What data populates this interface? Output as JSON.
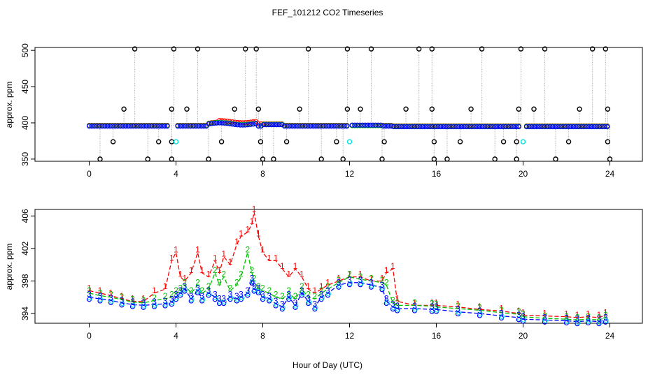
{
  "title": "FEF_101212  CO2 Timeseries",
  "xlabel": "Hour of Day (UTC)",
  "colors": {
    "raw_black": "#000000",
    "series1": "#ff0000",
    "series2": "#00c000",
    "series3": "#0000ff",
    "cyan": "#00e5e5",
    "connector": "#a0a0a0"
  },
  "chart_data": [
    {
      "type": "scatter",
      "ylabel": "approx. ppm",
      "xlim": [
        -2.5,
        25.5
      ],
      "ylim": [
        347,
        504
      ],
      "xticks": [
        0,
        4,
        8,
        12,
        16,
        20,
        24
      ],
      "yticks": [
        350,
        400,
        450,
        500
      ],
      "series": [
        {
          "name": "1",
          "values": "approx. 396 baseline; rises to ~403 near 7h"
        },
        {
          "name": "2",
          "values": "approx. 396 baseline"
        },
        {
          "name": "3",
          "values": "approx. 395 baseline"
        }
      ],
      "spikes_500": [
        2.1,
        3.9,
        5.0,
        7.2,
        7.7,
        10.1,
        11.9,
        13.0,
        15.2,
        15.8,
        18.1,
        19.9,
        21.0,
        23.2,
        23.8
      ],
      "points_420": [
        1.6,
        3.8,
        4.5,
        6.7,
        7.8,
        9.7,
        11.9,
        12.5,
        14.6,
        15.8,
        17.6,
        19.8,
        20.5,
        22.6,
        23.9
      ],
      "points_375": [
        1.1,
        3.2,
        3.8,
        6.1,
        7.9,
        9.1,
        11.4,
        13.6,
        15.9,
        17.1,
        19.1,
        19.7,
        22.1,
        23.9
      ],
      "points_350": [
        0.5,
        2.7,
        3.8,
        5.5,
        8.0,
        8.5,
        10.7,
        11.7,
        13.5,
        15.9,
        16.5,
        18.7,
        19.7,
        21.5,
        24.0
      ],
      "cyan_points": [
        4.0,
        12.0,
        20.0
      ]
    },
    {
      "type": "line",
      "ylabel": "approx. ppm",
      "xlim": [
        -2.5,
        25.5
      ],
      "ylim": [
        392.8,
        406.8
      ],
      "xticks": [
        0,
        4,
        8,
        12,
        16,
        20,
        24
      ],
      "yticks": [
        394,
        398,
        402,
        406
      ],
      "x": [
        0.0,
        0.5,
        1.0,
        1.5,
        2.0,
        2.5,
        3.0,
        3.5,
        3.8,
        4.0,
        4.2,
        4.4,
        4.7,
        5.0,
        5.2,
        5.5,
        5.8,
        6.0,
        6.2,
        6.5,
        6.8,
        7.0,
        7.3,
        7.5,
        7.6,
        7.8,
        8.0,
        8.3,
        8.6,
        8.9,
        9.2,
        9.5,
        9.8,
        10.1,
        10.4,
        10.7,
        11.0,
        11.5,
        12.0,
        12.5,
        13.0,
        13.5,
        13.7,
        14.0,
        14.2,
        15.0,
        15.8,
        16.0,
        17.0,
        18.0,
        19.0,
        19.8,
        20.0,
        21.0,
        22.0,
        22.5,
        23.0,
        23.5,
        23.8
      ],
      "series": [
        {
          "name": "1",
          "values": [
            396.8,
            396.5,
            396.2,
            395.8,
            395.5,
            395.5,
            396.5,
            397.0,
            400.5,
            401.5,
            398.5,
            398.0,
            399.0,
            401.5,
            399.0,
            398.5,
            400.5,
            399.0,
            401.0,
            400.0,
            402.5,
            403.5,
            404.0,
            405.0,
            406.5,
            403.5,
            401.5,
            400.5,
            400.5,
            399.5,
            398.5,
            399.5,
            398.5,
            397.0,
            396.5,
            397.0,
            397.5,
            398.0,
            398.5,
            398.5,
            398.0,
            398.0,
            399.0,
            399.5,
            395.5,
            395.0,
            395.0,
            395.0,
            394.8,
            394.5,
            394.3,
            394.0,
            393.8,
            393.7,
            393.6,
            393.5,
            393.6,
            393.5,
            393.8
          ]
        },
        {
          "name": "2",
          "values": [
            396.5,
            396.2,
            396.0,
            395.7,
            395.4,
            395.3,
            395.6,
            395.8,
            396.0,
            396.5,
            396.8,
            397.5,
            396.5,
            397.5,
            396.5,
            397.0,
            399.0,
            397.5,
            398.5,
            396.8,
            397.5,
            398.5,
            401.5,
            399.0,
            398.0,
            397.0,
            396.8,
            396.5,
            396.0,
            395.8,
            396.5,
            395.8,
            397.0,
            396.0,
            395.8,
            396.5,
            397.0,
            397.8,
            398.5,
            398.2,
            398.0,
            397.8,
            397.5,
            395.3,
            395.0,
            395.0,
            394.9,
            394.8,
            394.6,
            394.4,
            394.1,
            393.9,
            393.6,
            393.4,
            393.3,
            393.2,
            393.3,
            393.2,
            393.5
          ]
        },
        {
          "name": "3",
          "values": [
            396.0,
            395.8,
            395.6,
            395.3,
            395.1,
            395.0,
            395.1,
            395.2,
            395.4,
            396.0,
            396.5,
            397.0,
            395.8,
            396.8,
            395.8,
            396.5,
            396.0,
            395.5,
            395.5,
            396.0,
            395.8,
            396.0,
            396.5,
            398.0,
            397.0,
            396.8,
            396.0,
            395.8,
            395.2,
            394.8,
            396.0,
            395.0,
            396.5,
            395.5,
            394.8,
            396.0,
            396.5,
            397.5,
            397.8,
            397.8,
            397.5,
            397.2,
            395.5,
            394.8,
            394.6,
            394.6,
            394.5,
            394.5,
            394.2,
            394.0,
            393.7,
            393.5,
            393.3,
            393.2,
            393.1,
            393.0,
            393.1,
            393.0,
            393.2
          ]
        }
      ]
    }
  ]
}
